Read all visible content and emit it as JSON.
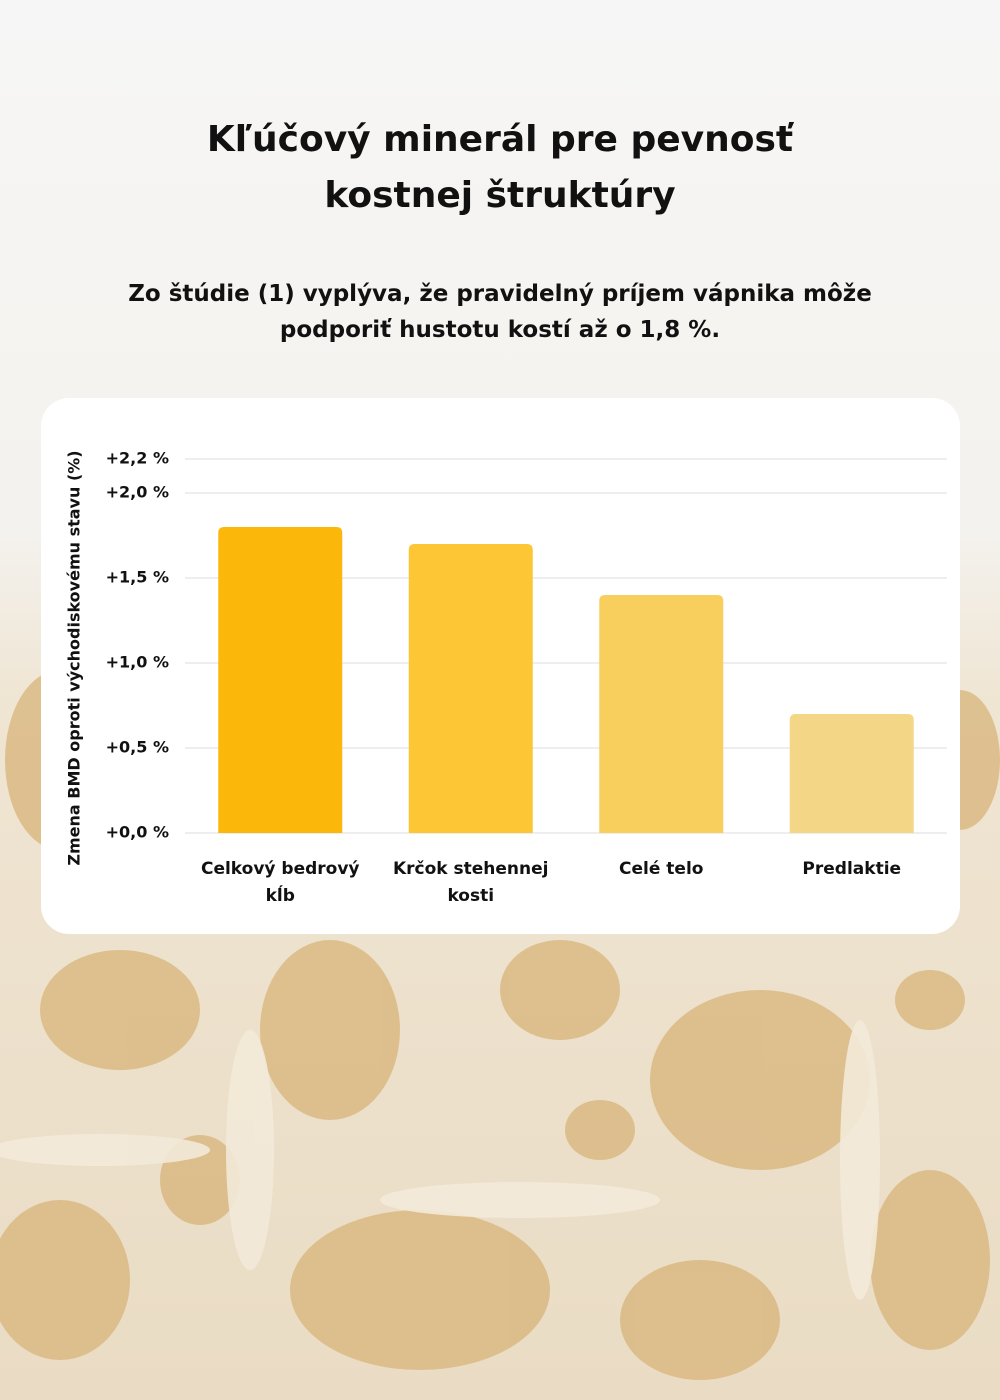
{
  "chart_data": {
    "type": "bar",
    "title": "Kľúčový minerál pre pevnosť kostnej štruktúry",
    "subtitle": "Zo štúdie (1) vyplýva, že pravidelný príjem vápnika môže podporiť hustotu kostí až o 1,8 %.",
    "y_label": "Zmena BMD oproti východiskovému stavu (%)",
    "categories": [
      "Celkový bedrový kĺb",
      "Krčok stehennej kosti",
      "Celé telo",
      "Predlaktie"
    ],
    "values": [
      1.8,
      1.7,
      1.4,
      0.7
    ],
    "colors": [
      "#fbb80a",
      "#fcc634",
      "#f8cf5c",
      "#f3d686"
    ],
    "ylim": [
      0,
      2.2
    ],
    "yticks": [
      {
        "value": 0,
        "label": "+0,0 %"
      },
      {
        "value": 0.5,
        "label": "+0,5 %"
      },
      {
        "value": 1,
        "label": "+1,0 %"
      },
      {
        "value": 1.5,
        "label": "+1,5 %"
      },
      {
        "value": 2,
        "label": "+2,0 %"
      },
      {
        "value": 2.2,
        "label": "+2,2 %"
      }
    ],
    "grid": true
  }
}
